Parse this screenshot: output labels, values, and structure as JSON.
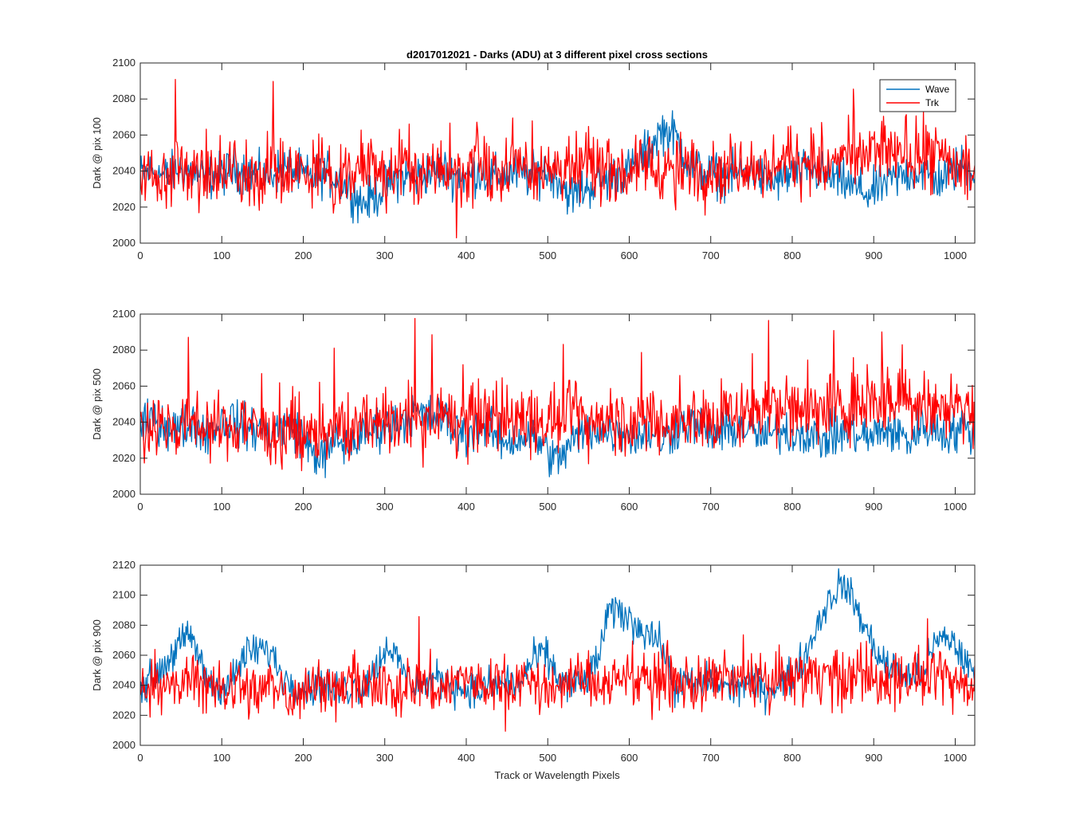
{
  "figure_title": "d2017012021 - Darks (ADU) at 3 different pixel cross sections",
  "xlabel": "Track or Wavelength Pixels",
  "legend": {
    "placement": "top-right",
    "entries": [
      {
        "label": "Wave",
        "color": "#0072BD"
      },
      {
        "label": "Trk",
        "color": "#FF0000"
      }
    ]
  },
  "chart_data": [
    {
      "type": "line",
      "title": "d2017012021 - Darks (ADU) at 3 different pixel cross sections",
      "ylabel": "Dark @ pix 100",
      "xlim": [
        0,
        1024
      ],
      "ylim": [
        2000,
        2100
      ],
      "xticks": [
        0,
        100,
        200,
        300,
        400,
        500,
        600,
        700,
        800,
        900,
        1000
      ],
      "yticks": [
        2000,
        2020,
        2040,
        2060,
        2080,
        2100
      ],
      "legend": "top-right",
      "series": [
        {
          "name": "Wave",
          "color": "#0072BD",
          "x_step": 16,
          "values": [
            2038,
            2040,
            2037,
            2041,
            2039,
            2036,
            2038,
            2040,
            2041,
            2037,
            2038,
            2042,
            2039,
            2036,
            2038,
            2037,
            2031,
            2022,
            2026,
            2033,
            2037,
            2036,
            2039,
            2041,
            2038,
            2037,
            2040,
            2036,
            2038,
            2039,
            2037,
            2040,
            2037,
            2026,
            2030,
            2033,
            2036,
            2039,
            2042,
            2053,
            2063,
            2060,
            2045,
            2040,
            2038,
            2037,
            2039,
            2040,
            2034,
            2035,
            2038,
            2040,
            2039,
            2036,
            2034,
            2030,
            2027,
            2033,
            2036,
            2039,
            2040,
            2035,
            2038,
            2043,
            2040,
            2037
          ]
        },
        {
          "name": "Trk",
          "color": "#FF0000",
          "x_step": 16,
          "values": [
            2042,
            2038,
            2035,
            2045,
            2033,
            2040,
            2037,
            2044,
            2036,
            2032,
            2048,
            2035,
            2041,
            2037,
            2043,
            2038,
            2036,
            2044,
            2040,
            2035,
            2046,
            2039,
            2037,
            2043,
            2041,
            2036,
            2048,
            2033,
            2042,
            2046,
            2039,
            2044,
            2041,
            2037,
            2045,
            2040,
            2043,
            2038,
            2042,
            2046,
            2041,
            2039,
            2044,
            2037,
            2042,
            2040,
            2045,
            2043,
            2039,
            2047,
            2044,
            2049,
            2046,
            2043,
            2048,
            2045,
            2051,
            2047,
            2050,
            2052,
            2048,
            2050,
            2045,
            2042,
            2038
          ]
        }
      ]
    },
    {
      "type": "line",
      "title": "",
      "ylabel": "Dark @ pix 500",
      "xlim": [
        0,
        1024
      ],
      "ylim": [
        2000,
        2100
      ],
      "xticks": [
        0,
        100,
        200,
        300,
        400,
        500,
        600,
        700,
        800,
        900,
        1000
      ],
      "yticks": [
        2000,
        2020,
        2040,
        2060,
        2080,
        2100
      ],
      "series": [
        {
          "name": "Wave",
          "color": "#0072BD",
          "x_step": 16,
          "values": [
            2035,
            2043,
            2038,
            2036,
            2040,
            2034,
            2039,
            2042,
            2037,
            2036,
            2033,
            2038,
            2036,
            2025,
            2020,
            2030,
            2027,
            2033,
            2036,
            2038,
            2040,
            2046,
            2042,
            2044,
            2036,
            2033,
            2038,
            2034,
            2029,
            2031,
            2033,
            2026,
            2018,
            2028,
            2034,
            2037,
            2034,
            2036,
            2032,
            2034,
            2030,
            2036,
            2040,
            2037,
            2034,
            2035,
            2038,
            2034,
            2031,
            2036,
            2033,
            2035,
            2030,
            2032,
            2035,
            2033,
            2031,
            2036,
            2034,
            2030,
            2038,
            2036,
            2033,
            2037,
            2035
          ]
        },
        {
          "name": "Trk",
          "color": "#FF0000",
          "x_step": 16,
          "values": [
            2034,
            2041,
            2038,
            2036,
            2042,
            2039,
            2037,
            2035,
            2040,
            2038,
            2036,
            2033,
            2037,
            2032,
            2035,
            2039,
            2036,
            2041,
            2038,
            2043,
            2040,
            2042,
            2039,
            2044,
            2041,
            2040,
            2046,
            2042,
            2041,
            2045,
            2043,
            2039,
            2040,
            2044,
            2041,
            2042,
            2046,
            2040,
            2038,
            2043,
            2041,
            2039,
            2044,
            2042,
            2040,
            2046,
            2043,
            2048,
            2050,
            2047,
            2051,
            2049,
            2046,
            2052,
            2048,
            2050,
            2053,
            2049,
            2051,
            2054,
            2050,
            2048,
            2052,
            2047,
            2045
          ]
        }
      ]
    },
    {
      "type": "line",
      "title": "",
      "ylabel": "Dark @ pix 900",
      "xlim": [
        0,
        1024
      ],
      "ylim": [
        2000,
        2120
      ],
      "xticks": [
        0,
        100,
        200,
        300,
        400,
        500,
        600,
        700,
        800,
        900,
        1000
      ],
      "yticks": [
        2000,
        2020,
        2040,
        2060,
        2080,
        2100,
        2120
      ],
      "series": [
        {
          "name": "Wave",
          "color": "#0072BD",
          "x_step": 16,
          "values": [
            2040,
            2045,
            2055,
            2068,
            2072,
            2045,
            2038,
            2042,
            2060,
            2064,
            2062,
            2045,
            2040,
            2038,
            2042,
            2036,
            2038,
            2040,
            2050,
            2068,
            2052,
            2040,
            2042,
            2045,
            2040,
            2038,
            2036,
            2040,
            2042,
            2040,
            2055,
            2062,
            2045,
            2040,
            2042,
            2055,
            2090,
            2088,
            2080,
            2076,
            2066,
            2040,
            2042,
            2040,
            2045,
            2038,
            2040,
            2042,
            2036,
            2042,
            2045,
            2060,
            2082,
            2100,
            2108,
            2090,
            2070,
            2055,
            2050,
            2045,
            2048,
            2068,
            2072,
            2060,
            2045
          ]
        },
        {
          "name": "Trk",
          "color": "#FF0000",
          "x_step": 16,
          "values": [
            2036,
            2044,
            2040,
            2038,
            2046,
            2040,
            2035,
            2042,
            2038,
            2036,
            2040,
            2037,
            2033,
            2038,
            2041,
            2036,
            2039,
            2043,
            2035,
            2040,
            2038,
            2044,
            2040,
            2037,
            2042,
            2046,
            2039,
            2038,
            2041,
            2045,
            2042,
            2038,
            2040,
            2044,
            2046,
            2041,
            2043,
            2045,
            2048,
            2042,
            2047,
            2044,
            2041,
            2039,
            2045,
            2043,
            2040,
            2046,
            2042,
            2044,
            2048,
            2045,
            2050,
            2046,
            2043,
            2048,
            2045,
            2042,
            2047,
            2045,
            2044,
            2041,
            2046,
            2043,
            2040
          ]
        }
      ]
    }
  ]
}
